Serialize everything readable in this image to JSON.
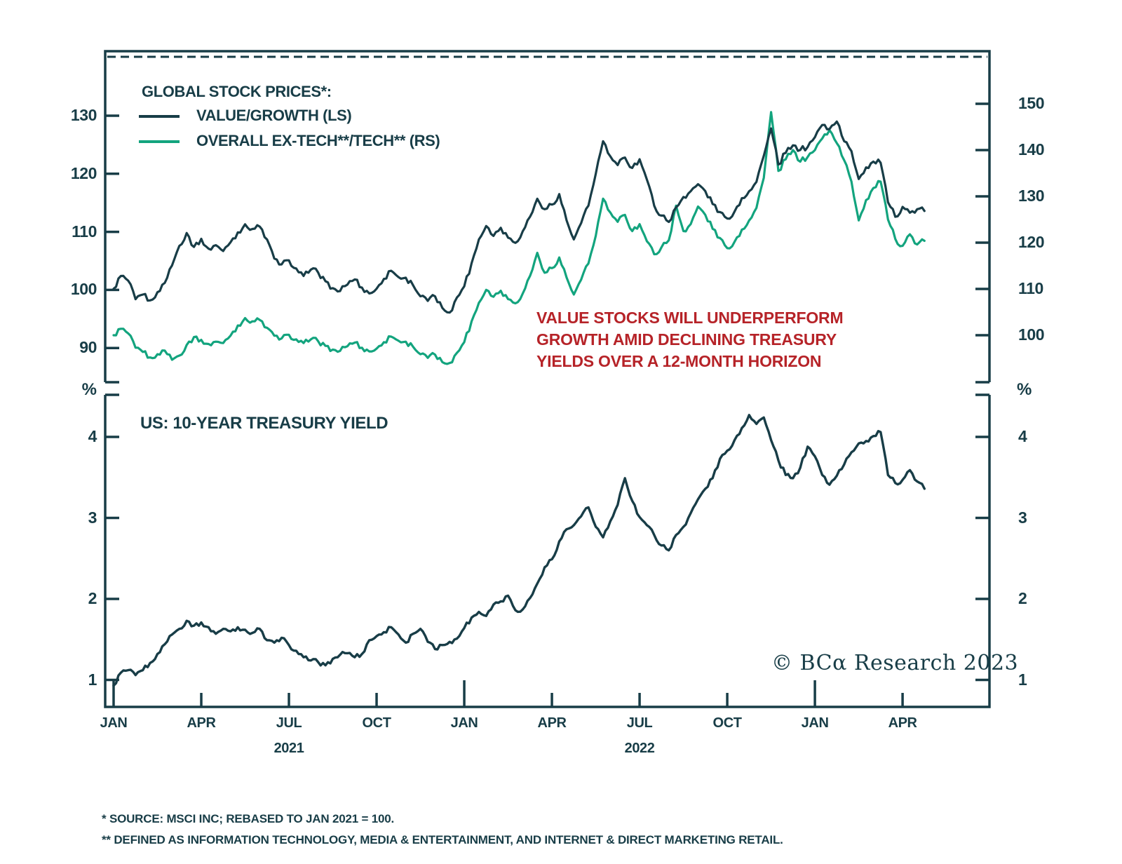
{
  "colors": {
    "ink": "#183d47",
    "value_growth_line": "#183d47",
    "ex_tech_line": "#13a47e",
    "annotation_red": "#b62328"
  },
  "top_panel": {
    "legend_title": "GLOBAL STOCK PRICES*:",
    "series_labels": [
      "VALUE/GROWTH (LS)",
      "OVERALL EX-TECH**/TECH** (RS)"
    ],
    "left_axis_ticks": [
      130,
      120,
      110,
      100,
      90
    ],
    "right_axis_ticks": [
      150,
      140,
      130,
      120,
      110,
      100
    ]
  },
  "bottom_panel": {
    "title": "US: 10-YEAR TREASURY YIELD",
    "unit_left": "%",
    "unit_right": "%",
    "axis_ticks": [
      4,
      3,
      2,
      1
    ]
  },
  "x_axis": {
    "month_labels": [
      {
        "text": "JAN",
        "month": 0,
        "major": true
      },
      {
        "text": "APR",
        "month": 3,
        "major": false
      },
      {
        "text": "JUL",
        "month": 6,
        "major": false
      },
      {
        "text": "OCT",
        "month": 9,
        "major": false
      },
      {
        "text": "JAN",
        "month": 12,
        "major": true
      },
      {
        "text": "APR",
        "month": 15,
        "major": false
      },
      {
        "text": "JUL",
        "month": 18,
        "major": false
      },
      {
        "text": "OCT",
        "month": 21,
        "major": false
      },
      {
        "text": "JAN",
        "month": 24,
        "major": true
      },
      {
        "text": "APR",
        "month": 27,
        "major": false
      }
    ],
    "year_labels": [
      {
        "text": "2021",
        "month": 6
      },
      {
        "text": "2022",
        "month": 18
      }
    ]
  },
  "annotation": {
    "lines": [
      "VALUE STOCKS WILL UNDERPERFORM",
      "GROWTH AMID DECLINING TREASURY",
      "YIELDS OVER A 12-MONTH HORIZON"
    ]
  },
  "copyright": "© BCα Research 2023",
  "footnotes": [
    "*  SOURCE: MSCI INC; REBASED TO JAN 2021 = 100.",
    "** DEFINED AS INFORMATION TECHNOLOGY, MEDIA & ENTERTAINMENT, AND INTERNET & DIRECT MARKETING RETAIL."
  ],
  "chart_data": [
    {
      "type": "line",
      "title": "GLOBAL STOCK PRICES* (rebased to Jan 2021 = 100)",
      "x_start": "JAN 2021",
      "x_end": "APR 2023",
      "sampling": "4 points per month",
      "x_tick_labels": [
        "JAN",
        "APR",
        "JUL",
        "OCT",
        "JAN",
        "APR",
        "JUL",
        "OCT",
        "JAN",
        "APR"
      ],
      "legend_position": "top-left",
      "grid": false,
      "series": [
        {
          "name": "VALUE/GROWTH (LS)",
          "axis": "left",
          "ylim": [
            86,
            141
          ],
          "yticks": [
            130,
            120,
            110,
            100,
            90
          ],
          "values": [
            100.2,
            102.4,
            101.6,
            98.4,
            99.2,
            98.2,
            99.6,
            101.2,
            104.2,
            107.6,
            109.8,
            107.4,
            108.8,
            107.1,
            107.7,
            106.7,
            108.2,
            109.9,
            111.3,
            110.5,
            110.9,
            108.7,
            105.4,
            104.4,
            105.1,
            103.7,
            102.4,
            103.5,
            103.0,
            101.5,
            100.3,
            99.8,
            100.9,
            101.8,
            100.4,
            99.4,
            100.2,
            101.9,
            103.3,
            102.2,
            102.1,
            100.8,
            98.9,
            98.1,
            98.9,
            96.9,
            96.1,
            98.7,
            100.6,
            104.6,
            108.7,
            111.0,
            109.3,
            110.7,
            109.0,
            108.1,
            110.1,
            112.6,
            115.7,
            113.9,
            114.7,
            116.5,
            112.0,
            108.7,
            111.5,
            114.5,
            120.0,
            125.6,
            123.0,
            121.5,
            122.8,
            121.0,
            122.5,
            119.0,
            114.5,
            112.8,
            111.7,
            114.2,
            116.0,
            117.0,
            118.2,
            117.0,
            114.8,
            113.4,
            112.3,
            113.5,
            115.8,
            117.0,
            118.6,
            123.1,
            127.8,
            121.6,
            123.6,
            124.9,
            124.1,
            124.6,
            126.3,
            128.4,
            127.7,
            129.0,
            125.6,
            123.9,
            119.1,
            121.1,
            122.1,
            121.9,
            115.1,
            112.6,
            114.3,
            113.3,
            113.9,
            113.6
          ]
        },
        {
          "name": "OVERALL EX-TECH**/TECH** (RS)",
          "axis": "right",
          "ylim": [
            92,
            161
          ],
          "yticks": [
            150,
            140,
            130,
            120,
            110,
            100
          ],
          "values": [
            100.0,
            101.4,
            100.4,
            97.3,
            96.4,
            95.2,
            95.9,
            96.7,
            94.7,
            95.6,
            97.9,
            99.6,
            99.0,
            98.1,
            98.6,
            98.3,
            99.9,
            102.1,
            103.7,
            103.0,
            103.3,
            101.6,
            99.9,
            99.3,
            100.1,
            99.1,
            98.3,
            99.1,
            98.7,
            97.7,
            96.9,
            96.6,
            97.6,
            98.4,
            97.3,
            96.5,
            97.1,
            98.5,
            99.7,
            98.8,
            98.6,
            97.5,
            95.9,
            95.1,
            95.8,
            94.2,
            94.0,
            96.2,
            98.5,
            103.0,
            107.0,
            109.8,
            108.3,
            109.6,
            107.8,
            106.9,
            109.0,
            112.8,
            117.8,
            113.5,
            114.5,
            116.8,
            112.5,
            108.8,
            112.0,
            115.5,
            121.5,
            129.5,
            126.5,
            124.5,
            126.0,
            122.5,
            124.0,
            120.3,
            117.5,
            119.0,
            120.5,
            128.0,
            122.5,
            124.0,
            127.8,
            126.0,
            123.0,
            121.0,
            118.8,
            120.2,
            122.8,
            124.8,
            127.5,
            134.0,
            148.2,
            135.5,
            138.0,
            140.0,
            137.5,
            138.5,
            140.0,
            142.5,
            144.3,
            141.5,
            137.8,
            133.2,
            124.8,
            129.2,
            131.8,
            133.2,
            125.0,
            120.8,
            119.3,
            121.8,
            119.6,
            120.4
          ]
        }
      ]
    },
    {
      "type": "line",
      "title": "US: 10-YEAR TREASURY YIELD",
      "unit": "%",
      "x_start": "JAN 2021",
      "x_end": "APR 2023",
      "sampling": "4 points per month",
      "ylim": [
        0.65,
        4.66
      ],
      "yticks": [
        4,
        3,
        2,
        1
      ],
      "grid": false,
      "values": [
        0.93,
        1.09,
        1.12,
        1.06,
        1.12,
        1.21,
        1.32,
        1.44,
        1.56,
        1.63,
        1.73,
        1.67,
        1.71,
        1.65,
        1.57,
        1.63,
        1.6,
        1.65,
        1.62,
        1.58,
        1.63,
        1.49,
        1.46,
        1.52,
        1.43,
        1.36,
        1.28,
        1.24,
        1.22,
        1.18,
        1.26,
        1.31,
        1.33,
        1.28,
        1.32,
        1.49,
        1.54,
        1.59,
        1.65,
        1.56,
        1.46,
        1.57,
        1.63,
        1.47,
        1.38,
        1.43,
        1.47,
        1.51,
        1.64,
        1.77,
        1.84,
        1.79,
        1.93,
        1.97,
        2.04,
        1.86,
        1.87,
        2.01,
        2.19,
        2.39,
        2.49,
        2.71,
        2.86,
        2.91,
        3.02,
        3.13,
        2.89,
        2.76,
        2.96,
        3.16,
        3.49,
        3.21,
        3.01,
        2.91,
        2.79,
        2.66,
        2.6,
        2.79,
        2.89,
        3.06,
        3.23,
        3.36,
        3.49,
        3.73,
        3.83,
        3.96,
        4.11,
        4.27,
        4.16,
        4.24,
        3.96,
        3.71,
        3.53,
        3.49,
        3.62,
        3.88,
        3.76,
        3.53,
        3.41,
        3.52,
        3.66,
        3.81,
        3.92,
        3.95,
        4.01,
        4.06,
        3.53,
        3.43,
        3.47,
        3.59,
        3.45,
        3.36
      ]
    }
  ]
}
